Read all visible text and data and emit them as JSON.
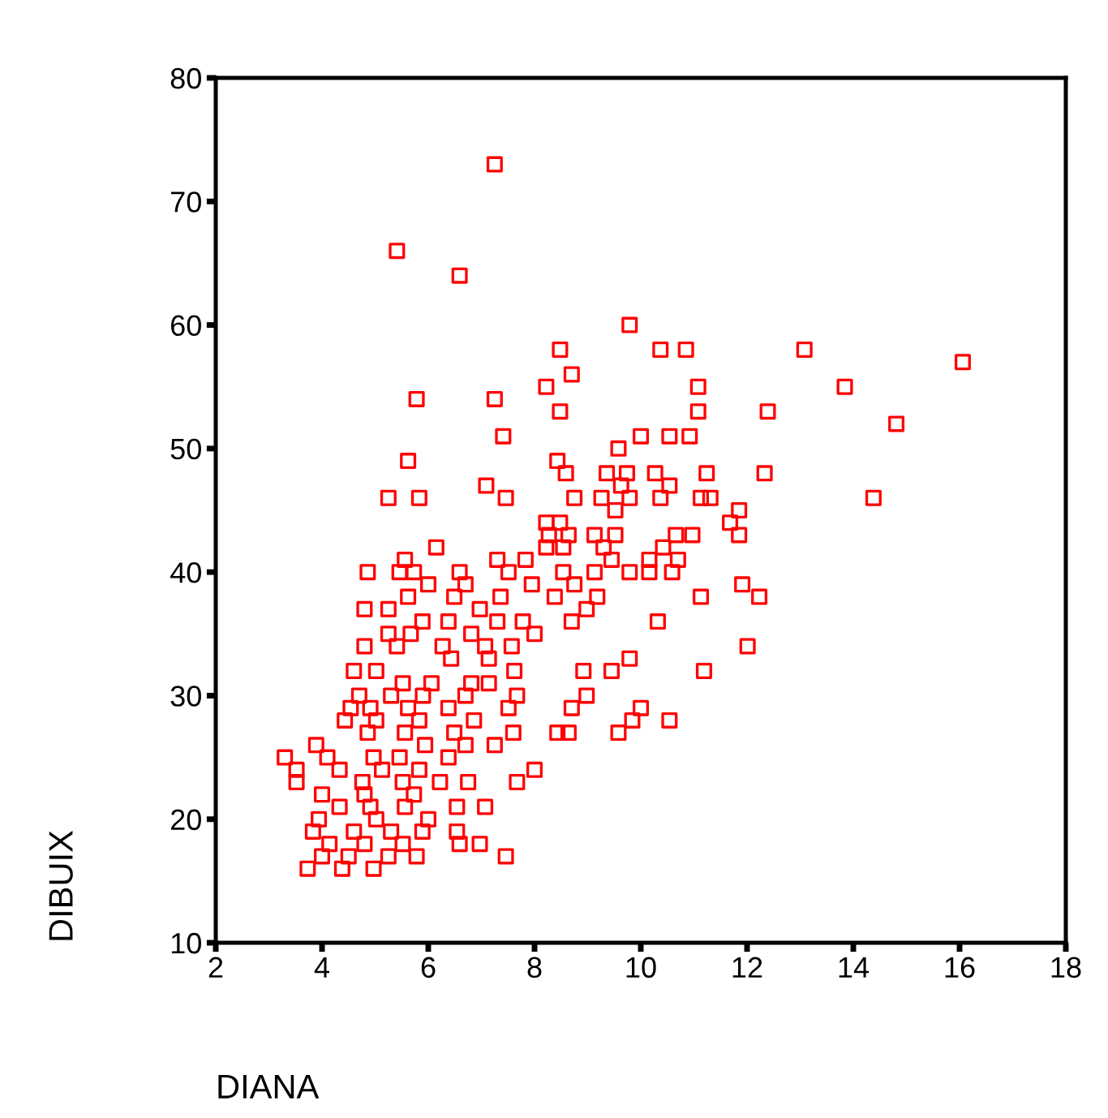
{
  "chart_data": {
    "type": "scatter",
    "xlabel": "DIANA",
    "ylabel": "DIBUIX",
    "xlim": [
      2,
      18
    ],
    "ylim": [
      10,
      80
    ],
    "xticks": [
      2,
      4,
      6,
      8,
      10,
      12,
      14,
      16,
      18
    ],
    "yticks": [
      10,
      20,
      30,
      40,
      50,
      60,
      70,
      80
    ],
    "grid": false,
    "marker": "square",
    "series": [
      {
        "color": "#ff0000",
        "x": [
          7.25,
          5.41,
          6.59,
          9.79,
          8.48,
          10.37,
          10.85,
          13.08,
          16.06,
          8.7,
          8.22,
          11.08,
          13.84,
          5.78,
          7.25,
          8.48,
          11.08,
          12.39,
          14.81,
          7.41,
          10.0,
          10.54,
          10.92,
          9.58,
          5.62,
          8.43,
          8.59,
          9.36,
          9.74,
          10.27,
          11.24,
          12.33,
          7.09,
          10.54,
          9.63,
          5.25,
          5.83,
          7.46,
          8.75,
          9.26,
          9.79,
          10.37,
          11.13,
          11.31,
          14.38,
          9.52,
          11.85,
          11.68,
          8.22,
          8.48,
          8.27,
          8.64,
          9.13,
          9.52,
          10.66,
          10.97,
          11.85,
          6.15,
          8.22,
          8.54,
          9.3,
          10.42,
          5.56,
          7.3,
          7.83,
          9.45,
          10.16,
          10.7,
          4.86,
          5.46,
          5.73,
          6.59,
          7.51,
          8.54,
          9.13,
          9.79,
          10.16,
          10.59,
          6.0,
          6.7,
          7.95,
          8.75,
          11.91,
          5.62,
          6.49,
          7.36,
          8.38,
          9.18,
          11.13,
          12.23,
          4.8,
          5.25,
          6.97,
          8.98,
          5.89,
          6.38,
          7.3,
          7.78,
          8.7,
          10.32,
          5.25,
          5.67,
          6.81,
          8.0,
          4.8,
          5.41,
          6.27,
          7.07,
          7.57,
          12.01,
          6.43,
          7.14,
          9.79,
          4.6,
          5.02,
          7.62,
          8.92,
          9.45,
          11.19,
          5.52,
          6.06,
          6.81,
          7.14,
          4.7,
          5.3,
          5.9,
          6.7,
          7.67,
          8.98,
          4.54,
          4.91,
          5.62,
          6.38,
          7.51,
          8.7,
          10.0,
          4.43,
          5.02,
          5.83,
          6.86,
          9.84,
          10.54,
          4.86,
          5.56,
          6.49,
          7.6,
          8.43,
          8.64,
          9.58,
          3.89,
          5.94,
          6.7,
          7.25,
          3.3,
          4.1,
          4.97,
          5.46,
          6.38,
          3.52,
          4.33,
          5.13,
          5.83,
          8.0,
          3.52,
          4.76,
          5.52,
          6.22,
          6.75,
          7.67,
          4.0,
          4.8,
          5.73,
          4.33,
          4.91,
          5.56,
          6.54,
          7.07,
          3.94,
          5.02,
          6.0,
          3.83,
          4.6,
          5.3,
          5.89,
          6.54,
          4.14,
          4.8,
          5.52,
          6.59,
          6.97,
          4.0,
          4.5,
          5.25,
          5.78,
          7.46,
          3.73,
          4.38,
          4.97
        ],
        "values": [
          73,
          66,
          64,
          60,
          58,
          58,
          58,
          58,
          57,
          56,
          55,
          55,
          55,
          54,
          54,
          53,
          53,
          53,
          52,
          51,
          51,
          51,
          51,
          50,
          49,
          49,
          48,
          48,
          48,
          48,
          48,
          48,
          47,
          47,
          47,
          46,
          46,
          46,
          46,
          46,
          46,
          46,
          46,
          46,
          46,
          45,
          45,
          44,
          44,
          44,
          43,
          43,
          43,
          43,
          43,
          43,
          43,
          42,
          42,
          42,
          42,
          42,
          41,
          41,
          41,
          41,
          41,
          41,
          40,
          40,
          40,
          40,
          40,
          40,
          40,
          40,
          40,
          40,
          39,
          39,
          39,
          39,
          39,
          38,
          38,
          38,
          38,
          38,
          38,
          38,
          37,
          37,
          37,
          37,
          36,
          36,
          36,
          36,
          36,
          36,
          35,
          35,
          35,
          35,
          34,
          34,
          34,
          34,
          34,
          34,
          33,
          33,
          33,
          32,
          32,
          32,
          32,
          32,
          32,
          31,
          31,
          31,
          31,
          30,
          30,
          30,
          30,
          30,
          30,
          29,
          29,
          29,
          29,
          29,
          29,
          29,
          28,
          28,
          28,
          28,
          28,
          28,
          27,
          27,
          27,
          27,
          27,
          27,
          27,
          26,
          26,
          26,
          26,
          25,
          25,
          25,
          25,
          25,
          24,
          24,
          24,
          24,
          24,
          23,
          23,
          23,
          23,
          23,
          23,
          22,
          22,
          22,
          21,
          21,
          21,
          21,
          21,
          20,
          20,
          20,
          19,
          19,
          19,
          19,
          19,
          18,
          18,
          18,
          18,
          18,
          17,
          17,
          17,
          17,
          17,
          16,
          16,
          16
        ]
      }
    ]
  }
}
